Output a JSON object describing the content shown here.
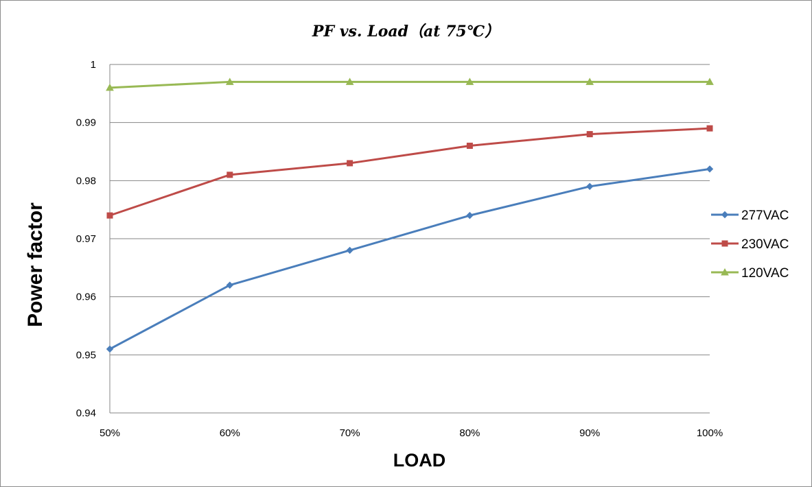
{
  "chart_data": {
    "type": "line",
    "title": "PF vs. Load（at 75℃）",
    "xlabel": "LOAD",
    "ylabel": "Power factor",
    "categories": [
      "50%",
      "60%",
      "70%",
      "80%",
      "90%",
      "100%"
    ],
    "ylim": [
      0.94,
      1.0
    ],
    "yticks": [
      "0.94",
      "0.95",
      "0.96",
      "0.97",
      "0.98",
      "0.99",
      "1"
    ],
    "grid": true,
    "legend": "right",
    "series": [
      {
        "name": "277VAC",
        "values": [
          0.951,
          0.962,
          0.968,
          0.974,
          0.979,
          0.982
        ],
        "color": "#4a7ebb",
        "marker": "diamond"
      },
      {
        "name": "230VAC",
        "values": [
          0.974,
          0.981,
          0.983,
          0.986,
          0.988,
          0.989
        ],
        "color": "#be4b48",
        "marker": "square"
      },
      {
        "name": "120VAC",
        "values": [
          0.996,
          0.997,
          0.997,
          0.997,
          0.997,
          0.997
        ],
        "color": "#98b954",
        "marker": "triangle"
      }
    ]
  }
}
